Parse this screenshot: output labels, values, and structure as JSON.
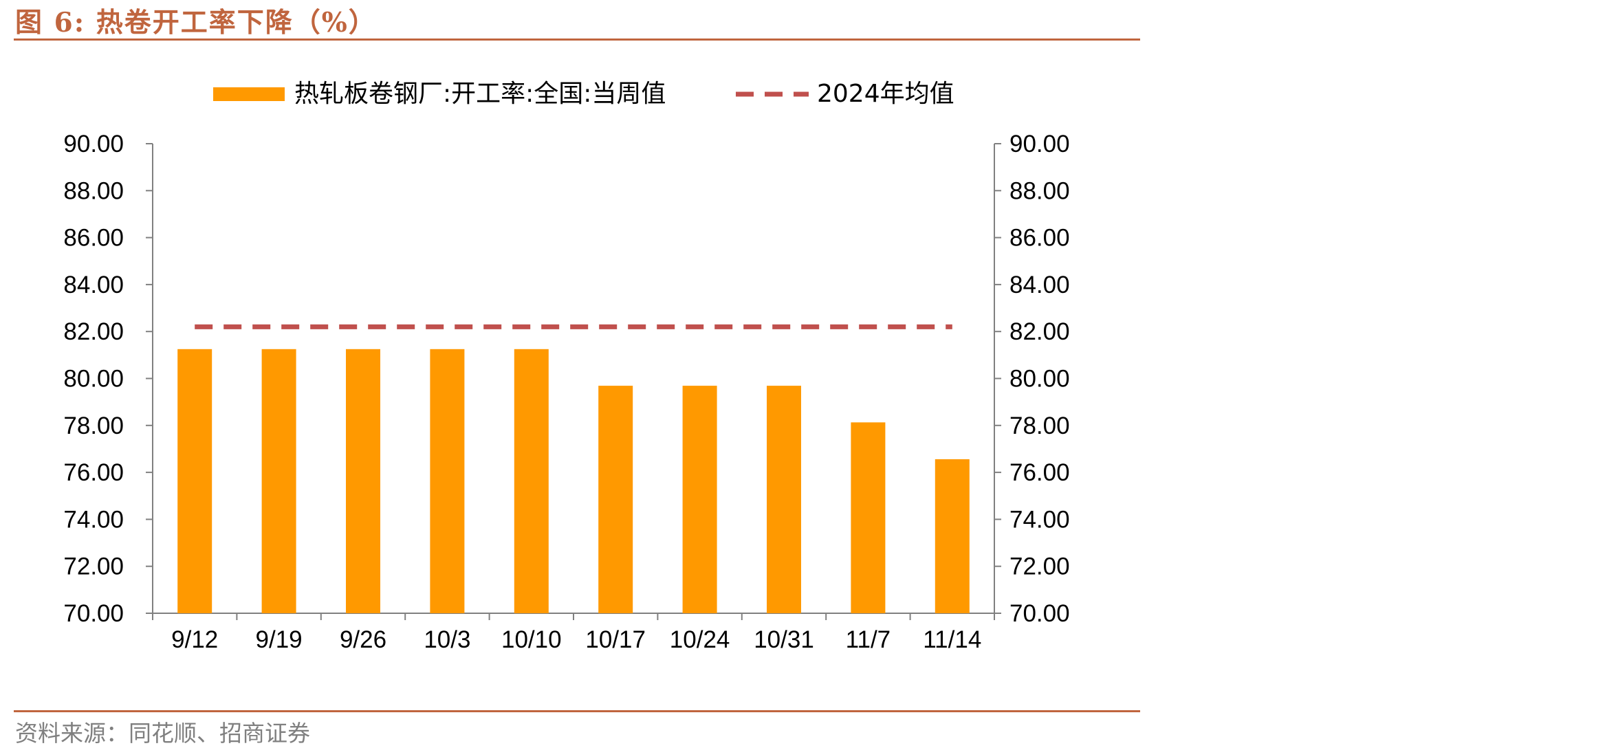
{
  "figure": {
    "title": "图 6:  热卷开工率下降（%）",
    "source": "资料来源：同花顺、招商证券"
  },
  "colors": {
    "accent": "#C0653E",
    "bar": "#FF9900",
    "avg_line": "#C0504D",
    "axis": "#808080"
  },
  "chart_data": {
    "type": "bar",
    "categories": [
      "9/12",
      "9/19",
      "9/26",
      "10/3",
      "10/10",
      "10/17",
      "10/24",
      "10/31",
      "11/7",
      "11/14"
    ],
    "series": [
      {
        "name": "热轧板卷钢厂:开工率:全国:当周值",
        "type": "bar",
        "values": [
          81.25,
          81.25,
          81.25,
          81.25,
          81.25,
          79.69,
          79.69,
          79.69,
          78.13,
          76.56
        ]
      },
      {
        "name": "2024年均值",
        "type": "line",
        "style": "dashed",
        "values": [
          82.2,
          82.2,
          82.2,
          82.2,
          82.2,
          82.2,
          82.2,
          82.2,
          82.2,
          82.2
        ]
      }
    ],
    "ylim": [
      70,
      90
    ],
    "ytick_step": 2,
    "ytick_labels": [
      "90.00",
      "88.00",
      "86.00",
      "84.00",
      "82.00",
      "80.00",
      "78.00",
      "76.00",
      "74.00",
      "72.00",
      "70.00"
    ],
    "secondary_ylim": [
      70,
      90
    ],
    "legend": "top",
    "grid": false
  }
}
